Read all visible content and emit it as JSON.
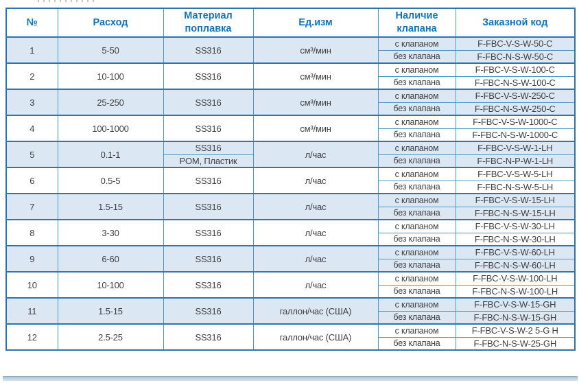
{
  "header": {
    "col_num": "№",
    "col_flow": "Расход",
    "col_material": "Материал поплавка",
    "col_unit": "Ед.изм",
    "col_valve": "Наличие клапана",
    "col_code": "Заказной код"
  },
  "valve_labels": {
    "with": "с клапаном",
    "without": "без клапана"
  },
  "rows": [
    {
      "num": "1",
      "flow": "5-50",
      "materials": [
        "SS316"
      ],
      "unit": "см³/мин",
      "code_with": "F-FBC-V-S-W-50-C",
      "code_without": "F-FBC-N-S-W-50-C",
      "shaded": true
    },
    {
      "num": "2",
      "flow": "10-100",
      "materials": [
        "SS316"
      ],
      "unit": "см³/мин",
      "code_with": "F-FBC-V-S-W-100-C",
      "code_without": "F-FBC-N-S-W-100-C",
      "shaded": false
    },
    {
      "num": "3",
      "flow": "25-250",
      "materials": [
        "SS316"
      ],
      "unit": "см³/мин",
      "code_with": "F-FBC-V-S-W-250-C",
      "code_without": "F-FBC-N-S-W-250-C",
      "shaded": true
    },
    {
      "num": "4",
      "flow": "100-1000",
      "materials": [
        "SS316"
      ],
      "unit": "см³/мин",
      "code_with": "F-FBC-V-S-W-1000-C",
      "code_without": "F-FBC-N-S-W-1000-C",
      "shaded": false
    },
    {
      "num": "5",
      "flow": "0.1-1",
      "materials": [
        "SS316",
        "POM, Пластик"
      ],
      "unit": "л/час",
      "code_with": "F-FBC-V-S-W-1-LH",
      "code_without": "F-FBC-N-P-W-1-LH",
      "shaded": true
    },
    {
      "num": "6",
      "flow": "0.5-5",
      "materials": [
        "SS316"
      ],
      "unit": "л/час",
      "code_with": "F-FBC-V-S-W-5-LH",
      "code_without": "F-FBC-N-S-W-5-LH",
      "shaded": false
    },
    {
      "num": "7",
      "flow": "1.5-15",
      "materials": [
        "SS316"
      ],
      "unit": "л/час",
      "code_with": "F-FBC-V-S-W-15-LH",
      "code_without": "F-FBC-N-S-W-15-LH",
      "shaded": true
    },
    {
      "num": "8",
      "flow": "3-30",
      "materials": [
        "SS316"
      ],
      "unit": "л/час",
      "code_with": "F-FBC-V-S-W-30-LH",
      "code_without": "F-FBC-N-S-W-30-LH",
      "shaded": false
    },
    {
      "num": "9",
      "flow": "6-60",
      "materials": [
        "SS316"
      ],
      "unit": "л/час",
      "code_with": "F-FBC-V-S-W-60-LH",
      "code_without": "F-FBC-N-S-W-60-LH",
      "shaded": true
    },
    {
      "num": "10",
      "flow": "10-100",
      "materials": [
        "SS316"
      ],
      "unit": "л/час",
      "code_with": "F-FBC-V-S-W-100-LH",
      "code_without": "F-FBC-N-S-W-100-LH",
      "shaded": false
    },
    {
      "num": "11",
      "flow": "1.5-15",
      "materials": [
        "SS316"
      ],
      "unit": "галлон/час (США)",
      "code_with": "F-FBC-V-S-W-15-GH",
      "code_without": "F-FBC-N-S-W-15-GH",
      "shaded": true
    },
    {
      "num": "12",
      "flow": "2.5-25",
      "materials": [
        "SS316"
      ],
      "unit": "галлон/час (США)",
      "code_with": "F-FBC-V-S-W-2 5-G H",
      "code_without": "F-FBC-N-S-W-25-GH",
      "shaded": false
    }
  ],
  "colors": {
    "header_text": "#1273ba",
    "border_light": "#4a97c9",
    "border_dark": "#2e74ae",
    "row_shaded_bg": "#dce7f4",
    "body_text": "#3f3f3f"
  }
}
